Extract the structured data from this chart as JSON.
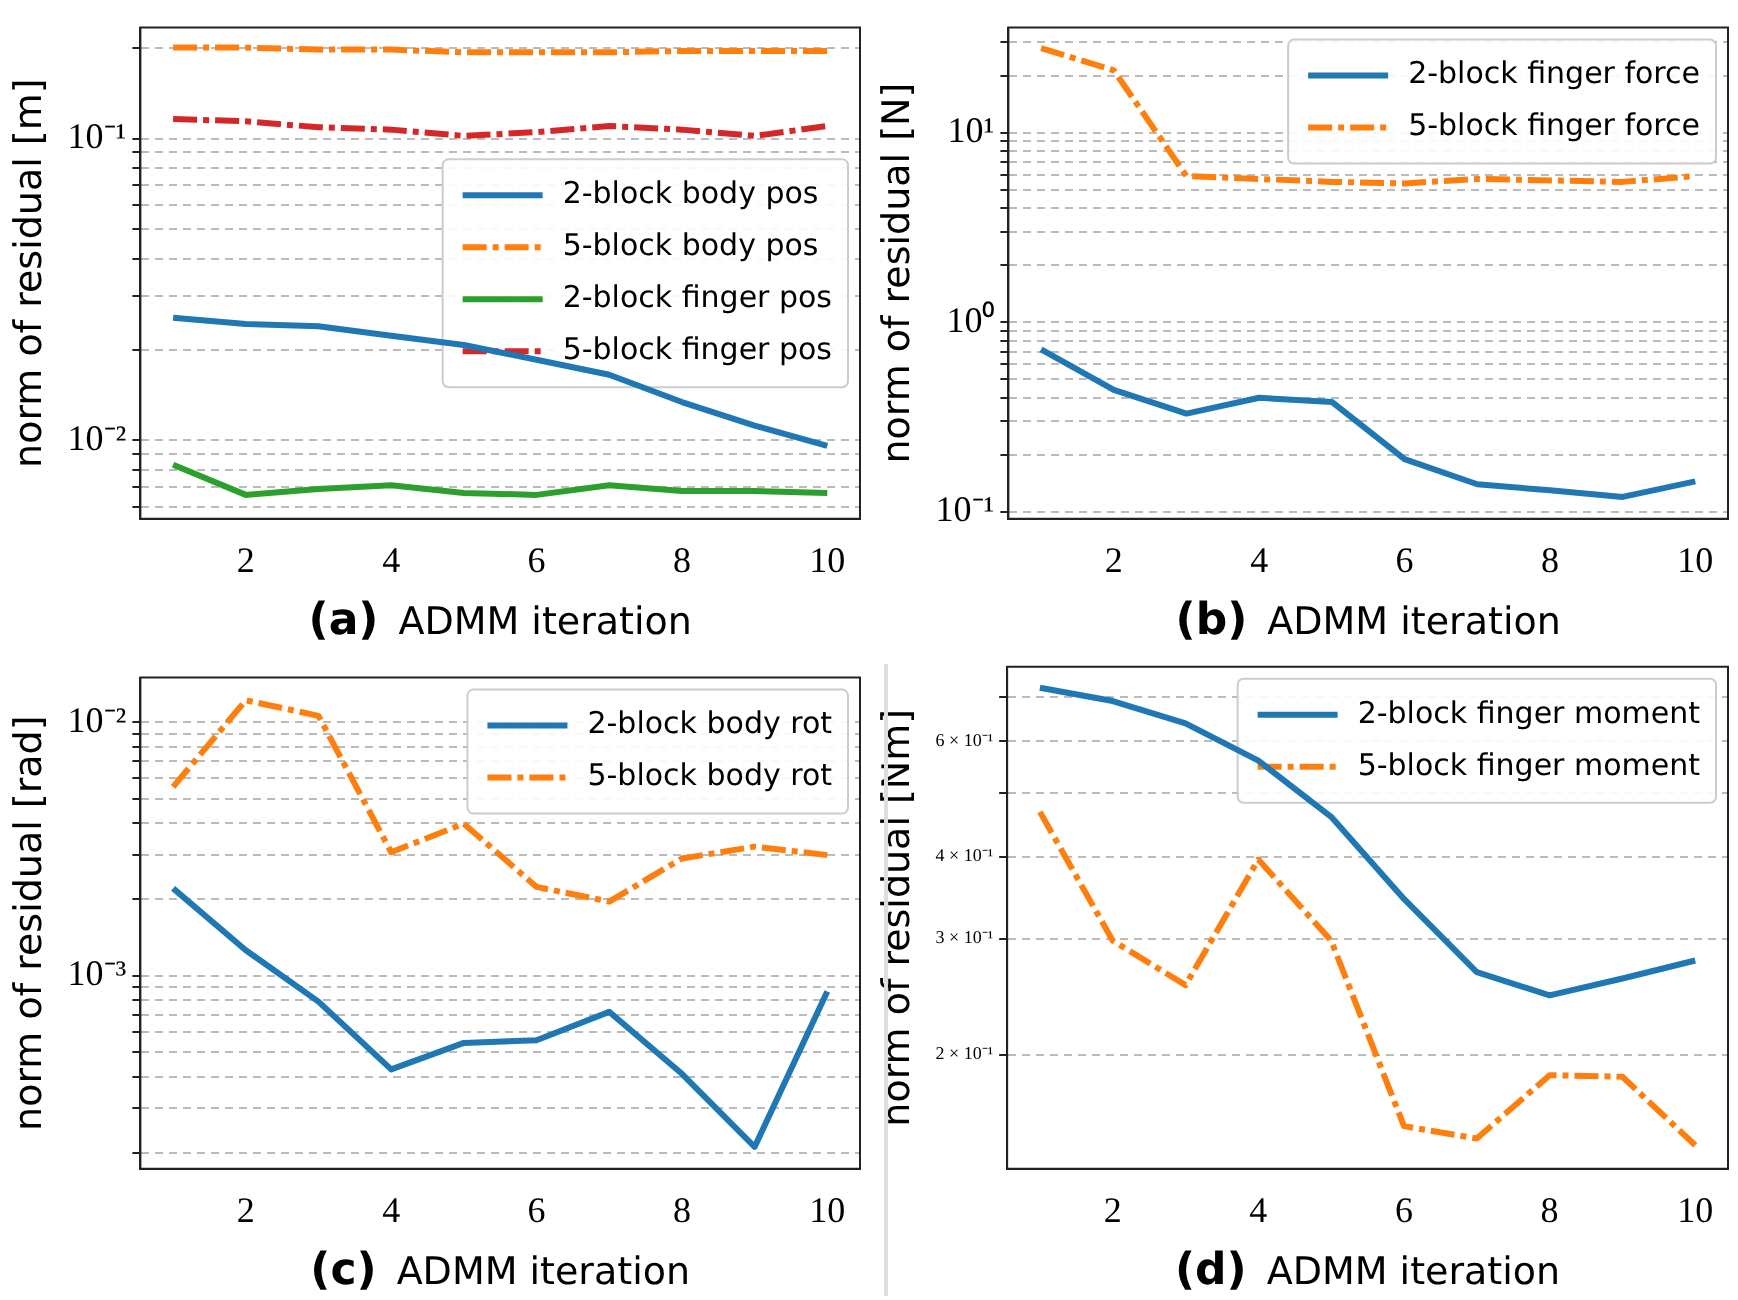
{
  "chart_data": [
    {
      "type": "line",
      "title": "(a)",
      "xlabel": "ADMM iteration",
      "ylabel": "norm of residual [m]",
      "x": [
        1,
        2,
        3,
        4,
        5,
        6,
        7,
        8,
        9,
        10
      ],
      "xlim": [
        0.55,
        10.45
      ],
      "xticks": [
        2,
        4,
        6,
        8,
        10
      ],
      "ylim": [
        0.0055,
        0.233
      ],
      "yticks": [
        {
          "value": 0.006,
          "label": null
        },
        {
          "value": 0.007,
          "label": null
        },
        {
          "value": 0.008,
          "label": null
        },
        {
          "value": 0.009,
          "label": null
        },
        {
          "value": 0.01,
          "label": "10⁻²"
        },
        {
          "value": 0.02,
          "label": null
        },
        {
          "value": 0.03,
          "label": null
        },
        {
          "value": 0.04,
          "label": null
        },
        {
          "value": 0.05,
          "label": null
        },
        {
          "value": 0.06,
          "label": null
        },
        {
          "value": 0.07,
          "label": null
        },
        {
          "value": 0.08,
          "label": null
        },
        {
          "value": 0.09,
          "label": null
        },
        {
          "value": 0.1,
          "label": "10⁻¹"
        },
        {
          "value": 0.2,
          "label": null
        }
      ],
      "log": "y",
      "grid": "y",
      "legend": "right",
      "series": [
        {
          "name": "2-block body pos",
          "color": "#1f77b4",
          "line_style": "solid",
          "values": [
            0.0255,
            0.0243,
            0.0239,
            0.0222,
            0.0207,
            0.0185,
            0.0165,
            0.0134,
            0.0112,
            0.0096
          ]
        },
        {
          "name": "5-block body pos",
          "color": "#ff7f0e",
          "line_style": "dashed",
          "values": [
            0.2,
            0.2,
            0.197,
            0.197,
            0.193,
            0.193,
            0.193,
            0.195,
            0.195,
            0.195
          ]
        },
        {
          "name": "2-block finger pos",
          "color": "#2ca02c",
          "line_style": "solid",
          "values": [
            0.0083,
            0.0066,
            0.0069,
            0.0071,
            0.0067,
            0.0066,
            0.0071,
            0.0068,
            0.0068,
            0.0067
          ]
        },
        {
          "name": "5-block finger pos",
          "color": "#d62728",
          "line_style": "dashed",
          "values": [
            0.116,
            0.114,
            0.109,
            0.107,
            0.102,
            0.105,
            0.11,
            0.107,
            0.102,
            0.11
          ]
        }
      ]
    },
    {
      "type": "line",
      "title": "(b)",
      "xlabel": "ADMM iteration",
      "ylabel": "norm of residual [N]",
      "x": [
        1,
        2,
        3,
        4,
        5,
        6,
        7,
        8,
        9,
        10
      ],
      "xlim": [
        0.55,
        10.45
      ],
      "xticks": [
        2,
        4,
        6,
        8,
        10
      ],
      "ylim": [
        0.092,
        35.8
      ],
      "yticks": [
        {
          "value": 0.1,
          "label": "10⁻¹"
        },
        {
          "value": 0.2,
          "label": null
        },
        {
          "value": 0.3,
          "label": null
        },
        {
          "value": 0.4,
          "label": null
        },
        {
          "value": 0.5,
          "label": null
        },
        {
          "value": 0.6,
          "label": null
        },
        {
          "value": 0.7,
          "label": null
        },
        {
          "value": 0.8,
          "label": null
        },
        {
          "value": 0.9,
          "label": null
        },
        {
          "value": 1,
          "label": "10⁰"
        },
        {
          "value": 2,
          "label": null
        },
        {
          "value": 3,
          "label": null
        },
        {
          "value": 4,
          "label": null
        },
        {
          "value": 5,
          "label": null
        },
        {
          "value": 6,
          "label": null
        },
        {
          "value": 7,
          "label": null
        },
        {
          "value": 8,
          "label": null
        },
        {
          "value": 9,
          "label": null
        },
        {
          "value": 10,
          "label": "10¹"
        },
        {
          "value": 20,
          "label": null
        },
        {
          "value": 30,
          "label": null
        }
      ],
      "log": "y",
      "grid": "y",
      "legend": "top right",
      "series": [
        {
          "name": "2-block finger force",
          "color": "#1f77b4",
          "line_style": "solid",
          "values": [
            0.72,
            0.44,
            0.33,
            0.4,
            0.38,
            0.19,
            0.14,
            0.13,
            0.12,
            0.145
          ]
        },
        {
          "name": "5-block finger force",
          "color": "#ff7f0e",
          "line_style": "dashed",
          "values": [
            27.9,
            21.3,
            5.9,
            5.7,
            5.5,
            5.4,
            5.7,
            5.6,
            5.5,
            5.9
          ]
        }
      ]
    },
    {
      "type": "line",
      "title": "(c)",
      "xlabel": "ADMM iteration",
      "ylabel": "norm of residual [rad]",
      "x": [
        1,
        2,
        3,
        4,
        5,
        6,
        7,
        8,
        9,
        10
      ],
      "xlim": [
        0.55,
        10.45
      ],
      "xticks": [
        2,
        4,
        6,
        8,
        10
      ],
      "ylim": [
        0.000173,
        0.015
      ],
      "yticks": [
        {
          "value": 0.0002,
          "label": null
        },
        {
          "value": 0.0003,
          "label": null
        },
        {
          "value": 0.0004,
          "label": null
        },
        {
          "value": 0.0005,
          "label": null
        },
        {
          "value": 0.0006,
          "label": null
        },
        {
          "value": 0.0007,
          "label": null
        },
        {
          "value": 0.0008,
          "label": null
        },
        {
          "value": 0.0009,
          "label": null
        },
        {
          "value": 0.001,
          "label": "10⁻³"
        },
        {
          "value": 0.002,
          "label": null
        },
        {
          "value": 0.003,
          "label": null
        },
        {
          "value": 0.004,
          "label": null
        },
        {
          "value": 0.005,
          "label": null
        },
        {
          "value": 0.006,
          "label": null
        },
        {
          "value": 0.007,
          "label": null
        },
        {
          "value": 0.008,
          "label": null
        },
        {
          "value": 0.009,
          "label": null
        },
        {
          "value": 0.01,
          "label": "10⁻²"
        }
      ],
      "log": "y",
      "grid": "y",
      "legend": "top right",
      "series": [
        {
          "name": "2-block body rot",
          "color": "#1f77b4",
          "line_style": "solid",
          "values": [
            0.00221,
            0.00126,
            0.00079,
            0.000427,
            0.000543,
            0.000556,
            0.00072,
            0.00041,
            0.000211,
            0.000866
          ]
        },
        {
          "name": "5-block body rot",
          "color": "#ff7f0e",
          "line_style": "dashed",
          "values": [
            0.00556,
            0.0122,
            0.0106,
            0.00307,
            0.00398,
            0.00224,
            0.00196,
            0.0029,
            0.00323,
            0.00299
          ]
        }
      ]
    },
    {
      "type": "line",
      "title": "(d)",
      "xlabel": "ADMM iteration",
      "ylabel": "norm of residual [Nm]",
      "x": [
        1,
        2,
        3,
        4,
        5,
        6,
        7,
        8,
        9,
        10
      ],
      "xlim": [
        0.55,
        10.45
      ],
      "xticks": [
        2,
        4,
        6,
        8,
        10
      ],
      "ylim": [
        0.134,
        0.778
      ],
      "yticks": [
        {
          "value": 0.2,
          "label": "2 × 10⁻¹"
        },
        {
          "value": 0.3,
          "label": "3 × 10⁻¹"
        },
        {
          "value": 0.4,
          "label": "4 × 10⁻¹"
        },
        {
          "value": 0.5,
          "label": null
        },
        {
          "value": 0.6,
          "label": "6 × 10⁻¹"
        },
        {
          "value": 0.7,
          "label": null
        }
      ],
      "log": "y",
      "grid": "y",
      "legend": "top right",
      "series": [
        {
          "name": "2-block finger moment",
          "color": "#1f77b4",
          "line_style": "solid",
          "values": [
            0.723,
            0.69,
            0.638,
            0.56,
            0.46,
            0.345,
            0.267,
            0.246,
            0.261,
            0.278
          ]
        },
        {
          "name": "5-block finger moment",
          "color": "#ff7f0e",
          "line_style": "dashed",
          "values": [
            0.468,
            0.298,
            0.255,
            0.396,
            0.298,
            0.1556,
            0.149,
            0.186,
            0.185,
            0.1455
          ]
        }
      ]
    }
  ]
}
